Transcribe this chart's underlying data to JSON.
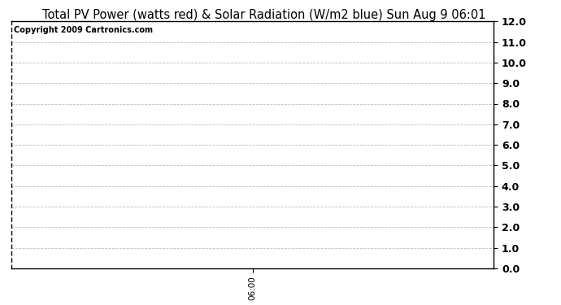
{
  "title": "Total PV Power (watts red) & Solar Radiation (W/m2 blue) Sun Aug 9 06:01",
  "title_fontsize": 10.5,
  "copyright_text": "Copyright 2009 Cartronics.com",
  "copyright_fontsize": 7,
  "background_color": "#ffffff",
  "plot_bg_color": "#ffffff",
  "ylim": [
    0.0,
    12.0
  ],
  "yticks": [
    0.0,
    1.0,
    2.0,
    3.0,
    4.0,
    5.0,
    6.0,
    7.0,
    8.0,
    9.0,
    10.0,
    11.0,
    12.0
  ],
  "xtick_labels": [
    "06:00"
  ],
  "xtick_positions": [
    0.5
  ],
  "xlim": [
    0.0,
    1.0
  ],
  "grid_color": "#bbbbbb",
  "grid_linestyle": "--",
  "grid_linewidth": 0.6,
  "spine_color": "#000000",
  "ylabel_right_fontsize": 9,
  "xlabel_fontsize": 7.5
}
